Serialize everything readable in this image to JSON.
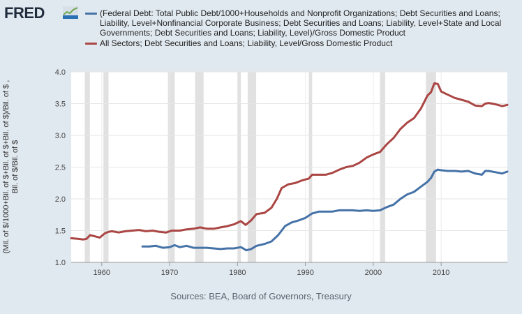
{
  "brand": {
    "name": "FRED",
    "icon": "trend-line-icon"
  },
  "source": "Sources: BEA, Board of Governors, Treasury",
  "chart_data": {
    "type": "line",
    "ylabel": "(Mil. of $/1000+Bil. of $+Bil. of $+Bil. of $)/Bil. of $ , Bil. of $/Bil. of $",
    "xlim": [
      1955.5,
      2019.75
    ],
    "ylim": [
      1.0,
      4.0
    ],
    "y_ticks": [
      "1.0",
      "1.5",
      "2.0",
      "2.5",
      "3.0",
      "3.5",
      "4.0"
    ],
    "x_ticks": [
      "1960",
      "1970",
      "1980",
      "1990",
      "2000",
      "2010"
    ],
    "grid": true,
    "legend_position": "top",
    "recessions": [
      [
        1957.5,
        1958.25
      ],
      [
        1960.25,
        1961.0
      ],
      [
        1969.75,
        1970.75
      ],
      [
        1973.75,
        1975.0
      ],
      [
        1980.0,
        1980.5
      ],
      [
        1981.5,
        1982.75
      ],
      [
        1990.5,
        1991.0
      ],
      [
        2001.0,
        2001.75
      ],
      [
        2007.75,
        2009.25
      ]
    ],
    "series": [
      {
        "name": "(Federal Debt: Total Public Debt/1000+Households and Nonprofit Organizations; Debt Securities and Loans; Liability, Level+Nonfinancial Corporate Business; Debt Securities and Loans; Liability, Level+State and Local Governments; Debt Securities and Loans; Liability, Level)/Gross Domestic Product",
        "color": "#4572a7",
        "points": [
          [
            1966.0,
            1.25
          ],
          [
            1967.0,
            1.25
          ],
          [
            1968.0,
            1.26
          ],
          [
            1969.0,
            1.23
          ],
          [
            1970.0,
            1.24
          ],
          [
            1970.75,
            1.27
          ],
          [
            1971.5,
            1.24
          ],
          [
            1972.5,
            1.26
          ],
          [
            1973.5,
            1.23
          ],
          [
            1974.5,
            1.23
          ],
          [
            1975.5,
            1.23
          ],
          [
            1976.5,
            1.22
          ],
          [
            1977.5,
            1.21
          ],
          [
            1978.5,
            1.22
          ],
          [
            1979.5,
            1.22
          ],
          [
            1980.5,
            1.24
          ],
          [
            1981.3,
            1.19
          ],
          [
            1982.0,
            1.21
          ],
          [
            1982.8,
            1.26
          ],
          [
            1984.0,
            1.29
          ],
          [
            1985.0,
            1.33
          ],
          [
            1986.0,
            1.43
          ],
          [
            1987.0,
            1.57
          ],
          [
            1988.0,
            1.63
          ],
          [
            1989.0,
            1.66
          ],
          [
            1990.0,
            1.7
          ],
          [
            1991.0,
            1.77
          ],
          [
            1992.0,
            1.8
          ],
          [
            1993.0,
            1.8
          ],
          [
            1994.0,
            1.8
          ],
          [
            1995.0,
            1.82
          ],
          [
            1996.0,
            1.82
          ],
          [
            1997.0,
            1.82
          ],
          [
            1998.0,
            1.81
          ],
          [
            1999.0,
            1.82
          ],
          [
            2000.0,
            1.81
          ],
          [
            2001.0,
            1.82
          ],
          [
            2002.0,
            1.87
          ],
          [
            2003.0,
            1.91
          ],
          [
            2004.0,
            2.0
          ],
          [
            2005.0,
            2.07
          ],
          [
            2006.0,
            2.11
          ],
          [
            2007.0,
            2.19
          ],
          [
            2008.0,
            2.27
          ],
          [
            2008.5,
            2.33
          ],
          [
            2009.0,
            2.43
          ],
          [
            2009.5,
            2.46
          ],
          [
            2010.0,
            2.45
          ],
          [
            2011.0,
            2.44
          ],
          [
            2012.0,
            2.44
          ],
          [
            2013.0,
            2.43
          ],
          [
            2014.0,
            2.44
          ],
          [
            2015.0,
            2.4
          ],
          [
            2016.0,
            2.38
          ],
          [
            2016.5,
            2.44
          ],
          [
            2017.0,
            2.44
          ],
          [
            2018.0,
            2.42
          ],
          [
            2019.0,
            2.4
          ],
          [
            2019.75,
            2.43
          ]
        ]
      },
      {
        "name": "All Sectors; Debt Securities and Loans; Liability, Level/Gross Domestic Product",
        "color": "#aa4643",
        "points": [
          [
            1955.5,
            1.38
          ],
          [
            1956.5,
            1.37
          ],
          [
            1957.3,
            1.36
          ],
          [
            1957.75,
            1.37
          ],
          [
            1958.3,
            1.43
          ],
          [
            1959.0,
            1.41
          ],
          [
            1959.7,
            1.39
          ],
          [
            1960.5,
            1.46
          ],
          [
            1961.0,
            1.48
          ],
          [
            1961.5,
            1.49
          ],
          [
            1962.5,
            1.47
          ],
          [
            1963.5,
            1.49
          ],
          [
            1964.5,
            1.5
          ],
          [
            1965.5,
            1.51
          ],
          [
            1966.5,
            1.49
          ],
          [
            1967.5,
            1.5
          ],
          [
            1968.5,
            1.48
          ],
          [
            1969.5,
            1.47
          ],
          [
            1970.3,
            1.5
          ],
          [
            1971.5,
            1.5
          ],
          [
            1972.5,
            1.52
          ],
          [
            1973.5,
            1.53
          ],
          [
            1974.5,
            1.55
          ],
          [
            1975.5,
            1.53
          ],
          [
            1976.5,
            1.53
          ],
          [
            1977.5,
            1.55
          ],
          [
            1978.5,
            1.57
          ],
          [
            1979.5,
            1.6
          ],
          [
            1980.5,
            1.65
          ],
          [
            1981.2,
            1.59
          ],
          [
            1982.0,
            1.66
          ],
          [
            1982.8,
            1.76
          ],
          [
            1984.0,
            1.78
          ],
          [
            1985.0,
            1.86
          ],
          [
            1985.8,
            2.0
          ],
          [
            1986.5,
            2.17
          ],
          [
            1987.5,
            2.23
          ],
          [
            1988.5,
            2.25
          ],
          [
            1989.5,
            2.29
          ],
          [
            1990.5,
            2.32
          ],
          [
            1991.0,
            2.38
          ],
          [
            1992.0,
            2.38
          ],
          [
            1993.0,
            2.38
          ],
          [
            1994.0,
            2.41
          ],
          [
            1995.0,
            2.46
          ],
          [
            1996.0,
            2.5
          ],
          [
            1997.0,
            2.52
          ],
          [
            1998.0,
            2.57
          ],
          [
            1999.0,
            2.65
          ],
          [
            2000.0,
            2.7
          ],
          [
            2001.0,
            2.74
          ],
          [
            2002.0,
            2.86
          ],
          [
            2003.0,
            2.96
          ],
          [
            2004.0,
            3.1
          ],
          [
            2005.0,
            3.2
          ],
          [
            2006.0,
            3.27
          ],
          [
            2007.0,
            3.42
          ],
          [
            2008.0,
            3.63
          ],
          [
            2008.5,
            3.68
          ],
          [
            2009.0,
            3.82
          ],
          [
            2009.5,
            3.81
          ],
          [
            2010.0,
            3.69
          ],
          [
            2011.0,
            3.64
          ],
          [
            2012.0,
            3.59
          ],
          [
            2013.0,
            3.56
          ],
          [
            2014.0,
            3.53
          ],
          [
            2015.0,
            3.47
          ],
          [
            2016.0,
            3.46
          ],
          [
            2016.5,
            3.5
          ],
          [
            2017.0,
            3.51
          ],
          [
            2018.0,
            3.49
          ],
          [
            2019.0,
            3.46
          ],
          [
            2019.75,
            3.48
          ]
        ]
      }
    ]
  }
}
